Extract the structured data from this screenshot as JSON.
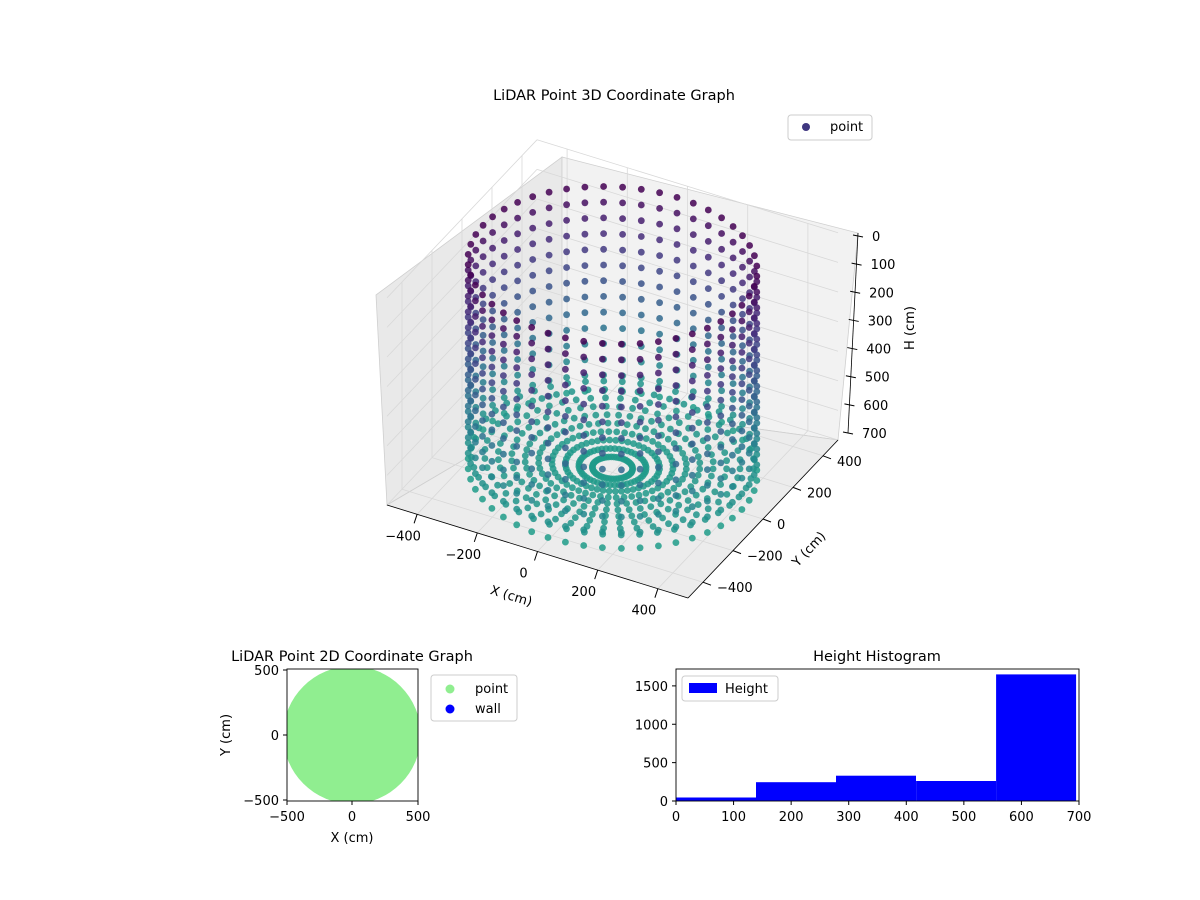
{
  "colors": {
    "point3d_top": "#440c68",
    "point3d_mid": "#3b528b",
    "point3d_low": "#2a8b8e",
    "point2d": "#90ee90",
    "wall": "#0000ff",
    "hist": "#0000ff",
    "pane": "#f2f2f2"
  },
  "chart_data": [
    {
      "type": "scatter",
      "projection": "3d",
      "title": "LiDAR Point 3D Coordinate Graph",
      "xlabel": "X (cm)",
      "ylabel": "Y (cm)",
      "zlabel": "H (cm)",
      "xticks": [
        "−400",
        "−200",
        "0",
        "200",
        "400"
      ],
      "yticks": [
        "−400",
        "−200",
        "0",
        "200",
        "400"
      ],
      "zticks": [
        "0",
        "100",
        "200",
        "300",
        "400",
        "500",
        "600",
        "700"
      ],
      "xlim": [
        -500,
        500
      ],
      "ylim": [
        -500,
        500
      ],
      "zlim": [
        0,
        700
      ],
      "z_inverted": true,
      "legend": {
        "position": "top-right",
        "entries": [
          "point"
        ]
      },
      "series": [
        {
          "name": "point",
          "shape": "cylinder",
          "radius": 430,
          "height_range": [
            0,
            690
          ],
          "rays": 48,
          "rings_per_ray": 20,
          "floor_height": 650,
          "color_scale": "viridis"
        }
      ],
      "grid": true
    },
    {
      "type": "scatter",
      "title": "LiDAR Point 2D Coordinate Graph",
      "xlabel": "X (cm)",
      "ylabel": "Y (cm)",
      "xticks": [
        "−500",
        "0",
        "500"
      ],
      "yticks": [
        "500",
        "0",
        "−500"
      ],
      "xlim": [
        -500,
        500
      ],
      "ylim": [
        -500,
        500
      ],
      "legend": {
        "position": "outside-right",
        "entries": [
          "point",
          "wall"
        ]
      },
      "series": [
        {
          "name": "point",
          "color": "#90ee90",
          "region": "disc",
          "radius": 500
        },
        {
          "name": "wall",
          "color": "#0000ff",
          "values": []
        }
      ]
    },
    {
      "type": "bar",
      "title": "Height Histogram",
      "xticks": [
        "0",
        "100",
        "200",
        "300",
        "400",
        "500",
        "600",
        "700"
      ],
      "yticks": [
        "0",
        "500",
        "1000",
        "1500"
      ],
      "xlim": [
        0,
        700
      ],
      "ylim": [
        0,
        1720
      ],
      "legend": {
        "position": "top-left",
        "entries": [
          "Height"
        ]
      },
      "bins": [
        {
          "from": 0,
          "to": 139,
          "count": 45
        },
        {
          "from": 139,
          "to": 278,
          "count": 245
        },
        {
          "from": 278,
          "to": 417,
          "count": 330
        },
        {
          "from": 417,
          "to": 556,
          "count": 260
        },
        {
          "from": 556,
          "to": 695,
          "count": 1650
        }
      ],
      "series": [
        {
          "name": "Height",
          "color": "#0000ff"
        }
      ]
    }
  ]
}
